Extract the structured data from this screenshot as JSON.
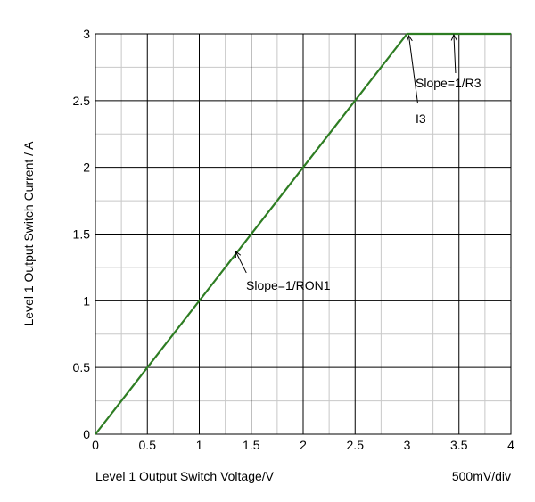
{
  "chart_data": {
    "type": "line",
    "title": "",
    "xlabel": "Level 1 Output Switch Voltage/V",
    "ylabel": "Level 1 Output Switch Current / A",
    "scale_note": "500mV/div",
    "xlim": [
      0,
      4
    ],
    "ylim": [
      0,
      3
    ],
    "grid": true,
    "x_ticks": [
      "0",
      "0.5",
      "1",
      "1.5",
      "2",
      "2.5",
      "3",
      "3.5",
      "4"
    ],
    "y_ticks": [
      "0",
      "0.5",
      "1",
      "1.5",
      "2",
      "2.5",
      "3"
    ],
    "series": [
      {
        "color": "#2e7d23",
        "x": [
          0,
          3,
          4
        ],
        "y": [
          0,
          3,
          3
        ]
      }
    ],
    "annotations": [
      {
        "text": "Slope=1/RON1",
        "x": 1.35,
        "y": 1.37
      },
      {
        "text": "I3",
        "x": 3.0,
        "y": 3.0
      },
      {
        "text": "Slope=1/R3",
        "x": 3.45,
        "y": 3.0
      }
    ]
  }
}
